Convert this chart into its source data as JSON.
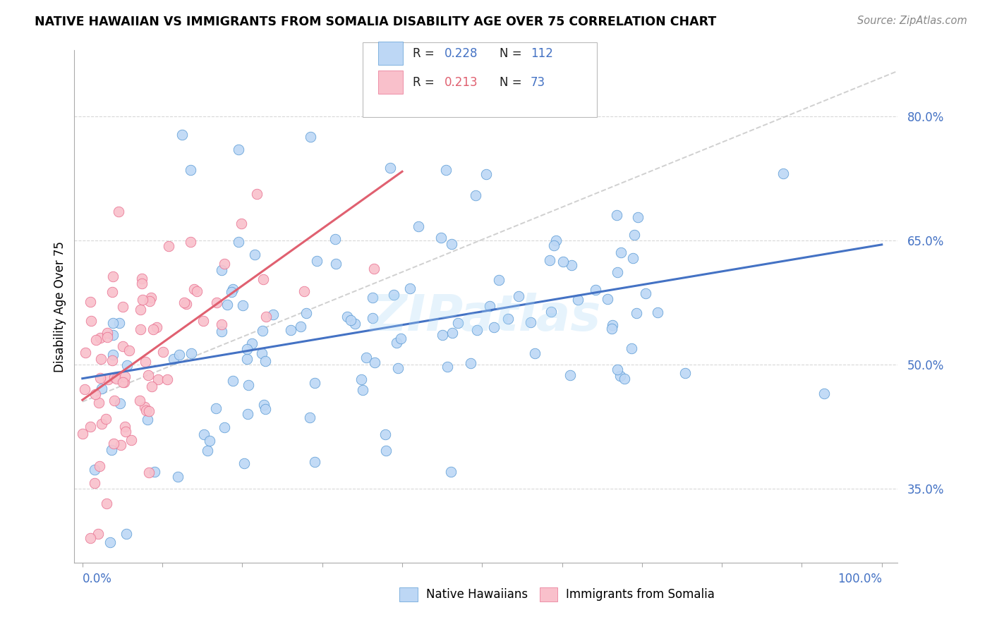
{
  "title": "NATIVE HAWAIIAN VS IMMIGRANTS FROM SOMALIA DISABILITY AGE OVER 75 CORRELATION CHART",
  "source": "Source: ZipAtlas.com",
  "ylabel": "Disability Age Over 75",
  "yticks": [
    "80.0%",
    "65.0%",
    "50.0%",
    "35.0%"
  ],
  "ytick_vals": [
    0.8,
    0.65,
    0.5,
    0.35
  ],
  "xlim": [
    -0.01,
    1.02
  ],
  "ylim": [
    0.26,
    0.88
  ],
  "legend_label1": "Native Hawaiians",
  "legend_label2": "Immigrants from Somalia",
  "R1": 0.228,
  "N1": 112,
  "R2": 0.213,
  "N2": 73,
  "color_blue_fill": "#bdd7f5",
  "color_pink_fill": "#f9c0cb",
  "color_blue_edge": "#5b9bd5",
  "color_pink_edge": "#e87090",
  "color_line_blue": "#4472c4",
  "color_line_pink": "#e06070",
  "color_line_dashed": "#c8c8c8",
  "color_ytick": "#4472c4",
  "watermark": "ZIPatlas"
}
